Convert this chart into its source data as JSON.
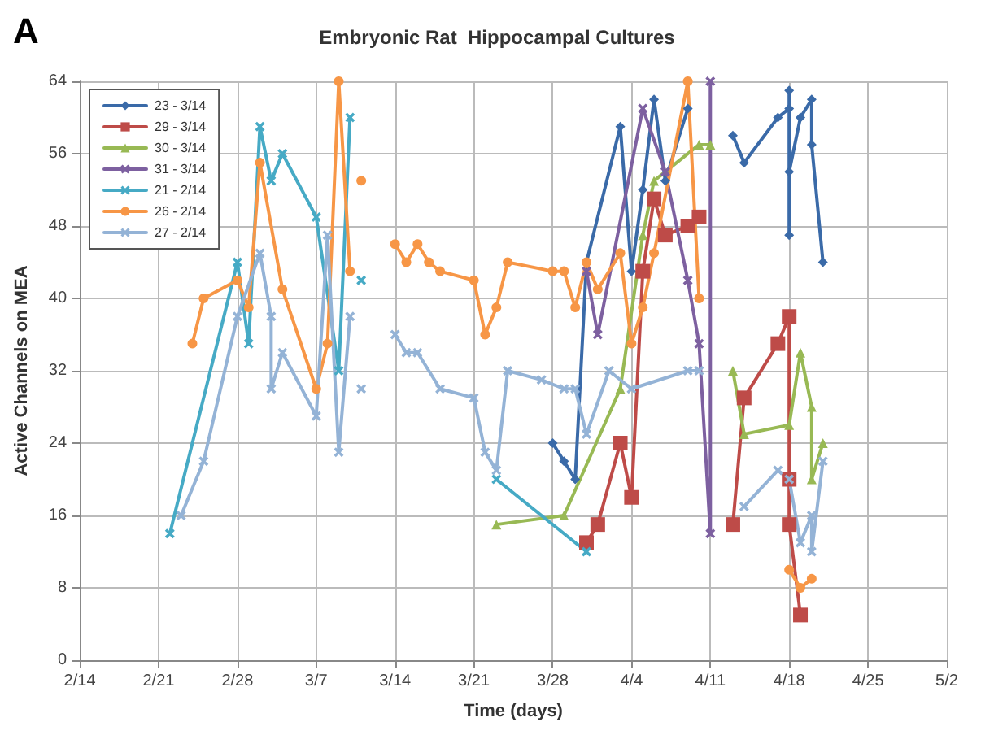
{
  "chart_data": {
    "type": "line",
    "title": "Embryonic Rat  Hippocampal Cultures",
    "xlabel": "Time (days)",
    "ylabel": "Active Channels on MEA",
    "annotations": [
      "A"
    ],
    "xlim": [
      "--02-14",
      "--05-02"
    ],
    "xticks": [
      {
        "value": "--02-14",
        "label": "2/14"
      },
      {
        "value": "--02-21",
        "label": "2/21"
      },
      {
        "value": "--02-28",
        "label": "2/28"
      },
      {
        "value": "--03-07",
        "label": "3/7"
      },
      {
        "value": "--03-14",
        "label": "3/14"
      },
      {
        "value": "--03-21",
        "label": "3/21"
      },
      {
        "value": "--03-28",
        "label": "3/28"
      },
      {
        "value": "--04-04",
        "label": "4/4"
      },
      {
        "value": "--04-11",
        "label": "4/11"
      },
      {
        "value": "--04-18",
        "label": "4/18"
      },
      {
        "value": "--04-25",
        "label": "4/25"
      },
      {
        "value": "--05-02",
        "label": "5/2"
      }
    ],
    "ylim": [
      0,
      64
    ],
    "yticks": [
      0,
      8,
      16,
      24,
      32,
      40,
      48,
      56,
      64
    ],
    "grid": true,
    "legend": "top left",
    "line_style": "solid",
    "series": [
      {
        "name": "23 - 3/14",
        "color": "#3a6aa8",
        "marker": "diamond",
        "x": [
          "--03-28",
          "--03-29",
          "--03-30",
          "--03-31",
          "--04-03",
          "--04-04",
          "--04-05",
          "--04-06",
          "--04-07",
          "--04-09",
          "--04-11",
          "--04-13",
          "--04-14",
          "--04-17",
          "--04-18",
          "--04-18",
          "--04-18",
          "--04-18",
          "--04-19",
          "--04-20",
          "--04-20",
          "--04-21"
        ],
        "values": [
          24,
          22,
          20,
          44,
          59,
          43,
          52,
          62,
          53,
          61,
          null,
          58,
          55,
          60,
          61,
          63,
          47,
          54,
          60,
          62,
          57,
          44
        ]
      },
      {
        "name": "29 - 3/14",
        "color": "#be4b48",
        "marker": "square",
        "x": [
          "--03-31",
          "--04-01",
          "--04-03",
          "--04-04",
          "--04-05",
          "--04-06",
          "--04-07",
          "--04-09",
          "--04-10",
          "--04-12",
          "--04-13",
          "--04-14",
          "--04-17",
          "--04-18",
          "--04-18",
          "--04-18",
          "--04-19"
        ],
        "values": [
          13,
          15,
          24,
          18,
          43,
          51,
          47,
          48,
          49,
          null,
          15,
          29,
          35,
          38,
          20,
          15,
          5
        ]
      },
      {
        "name": "30 - 3/14",
        "color": "#98b954",
        "marker": "triangle",
        "x": [
          "--03-23",
          "--03-29",
          "--04-03",
          "--04-05",
          "--04-06",
          "--04-10",
          "--04-11",
          "--04-12",
          "--04-13",
          "--04-14",
          "--04-18",
          "--04-19",
          "--04-20",
          "--04-20",
          "--04-21"
        ],
        "values": [
          15,
          16,
          30,
          47,
          53,
          57,
          57,
          null,
          32,
          25,
          26,
          34,
          28,
          20,
          24
        ]
      },
      {
        "name": "31 - 3/14",
        "color": "#7d60a0",
        "marker": "cross",
        "x": [
          "--03-31",
          "--04-01",
          "--04-05",
          "--04-07",
          "--04-09",
          "--04-10",
          "--04-11",
          "--04-11"
        ],
        "values": [
          43,
          36,
          61,
          54,
          42,
          35,
          14,
          64
        ]
      },
      {
        "name": "21 - 2/14",
        "color": "#46aac5",
        "marker": "cross",
        "x": [
          "--02-22",
          "--02-28",
          "--03-01",
          "--03-02",
          "--03-03",
          "--03-04",
          "--03-07",
          "--03-09",
          "--03-10",
          "--03-16",
          "--03-23",
          "--03-31"
        ],
        "values": [
          14,
          44,
          35,
          59,
          53,
          56,
          49,
          32,
          60,
          null,
          20,
          12
        ]
      },
      {
        "color": "#46aac5",
        "marker": "cross",
        "x": [
          "--03-11"
        ],
        "values": [
          42
        ]
      },
      {
        "name": "26 - 2/14",
        "color": "#f79646",
        "marker": "circle",
        "x": [
          "--02-24",
          "--02-25",
          "--02-28",
          "--03-01",
          "--03-02",
          "--03-04",
          "--03-07",
          "--03-08",
          "--03-09",
          "--03-10",
          "--03-12",
          "--03-14",
          "--03-15",
          "--03-16",
          "--03-17",
          "--03-18",
          "--03-21",
          "--03-22",
          "--03-23",
          "--03-24",
          "--03-28",
          "--03-29",
          "--03-30",
          "--03-31",
          "--04-01",
          "--04-03",
          "--04-04",
          "--04-05",
          "--04-06",
          "--04-09",
          "--04-10",
          "--04-14",
          "--04-18",
          "--04-19",
          "--04-20"
        ],
        "values": [
          35,
          40,
          42,
          39,
          55,
          41,
          30,
          35,
          64,
          43,
          null,
          46,
          44,
          46,
          44,
          43,
          42,
          36,
          39,
          44,
          43,
          43,
          39,
          44,
          41,
          45,
          35,
          39,
          45,
          64,
          40,
          null,
          10,
          8,
          9
        ]
      },
      {
        "name": "27 - 2/14",
        "color": "#94b3d6",
        "marker": "cross",
        "x": [
          "--02-23",
          "--02-25",
          "--02-28",
          "--03-02",
          "--03-03",
          "--03-03",
          "--03-04",
          "--03-07",
          "--03-08",
          "--03-09",
          "--03-10",
          "--03-12",
          "--03-14",
          "--03-15",
          "--03-16",
          "--03-18",
          "--03-21",
          "--03-22",
          "--03-23",
          "--03-24",
          "--03-27",
          "--03-29",
          "--03-30",
          "--03-31",
          "--04-02",
          "--04-04",
          "--04-09",
          "--04-10",
          "--04-12",
          "--04-14",
          "--04-17",
          "--04-18",
          "--04-19",
          "--04-20",
          "--04-20",
          "--04-21"
        ],
        "values": [
          16,
          22,
          38,
          45,
          38,
          30,
          34,
          27,
          47,
          23,
          38,
          null,
          36,
          34,
          34,
          30,
          29,
          23,
          21,
          32,
          31,
          30,
          30,
          25,
          32,
          30,
          32,
          32,
          null,
          17,
          21,
          20,
          13,
          16,
          12,
          22
        ]
      },
      {
        "color": "#f79646",
        "marker": "circle",
        "x": [
          "--03-11"
        ],
        "values": [
          53
        ]
      },
      {
        "color": "#94b3d6",
        "marker": "cross",
        "x": [
          "--03-11"
        ],
        "values": [
          30
        ]
      }
    ]
  }
}
